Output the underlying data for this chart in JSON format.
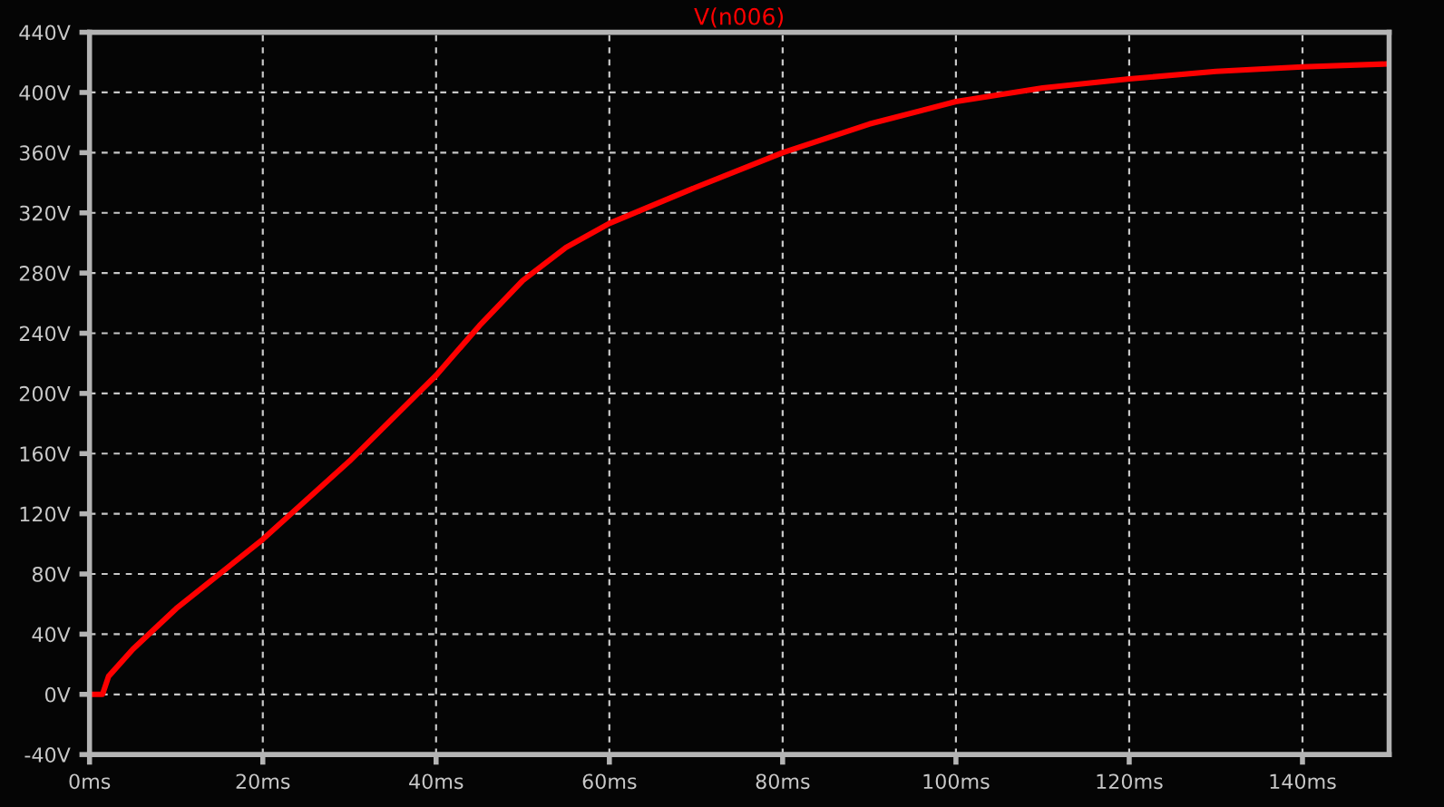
{
  "chart_data": {
    "type": "line",
    "title": "V(n006)",
    "x": [
      0,
      1.5,
      2.2,
      5,
      10,
      20,
      30,
      40,
      45,
      50,
      55,
      60,
      70,
      80,
      90,
      100,
      110,
      120,
      130,
      140,
      150
    ],
    "series": [
      {
        "color": "#ff0000",
        "values": [
          0,
          0,
          12,
          30,
          57,
          103,
          155,
          212,
          245,
          275,
          297,
          313,
          337,
          360,
          379,
          394,
          403,
          409,
          414,
          417,
          419
        ]
      }
    ],
    "xlim": [
      0,
      150
    ],
    "xticks": [
      {
        "value": 0,
        "label": "0ms"
      },
      {
        "value": 20,
        "label": "20ms"
      },
      {
        "value": 40,
        "label": "40ms"
      },
      {
        "value": 60,
        "label": "60ms"
      },
      {
        "value": 80,
        "label": "80ms"
      },
      {
        "value": 100,
        "label": "100ms"
      },
      {
        "value": 120,
        "label": "120ms"
      },
      {
        "value": 140,
        "label": "140ms"
      }
    ],
    "ylim": [
      -40,
      440
    ],
    "yticks": [
      {
        "value": -40,
        "label": "-40V"
      },
      {
        "value": 0,
        "label": "0V"
      },
      {
        "value": 40,
        "label": "40V"
      },
      {
        "value": 80,
        "label": "80V"
      },
      {
        "value": 120,
        "label": "120V"
      },
      {
        "value": 160,
        "label": "160V"
      },
      {
        "value": 200,
        "label": "200V"
      },
      {
        "value": 240,
        "label": "240V"
      },
      {
        "value": 280,
        "label": "280V"
      },
      {
        "value": 320,
        "label": "320V"
      },
      {
        "value": 360,
        "label": "360V"
      },
      {
        "value": 400,
        "label": "400V"
      },
      {
        "value": 440,
        "label": "440V"
      }
    ],
    "grid": true,
    "line_style": "solid",
    "marker": "none",
    "legend": false
  }
}
